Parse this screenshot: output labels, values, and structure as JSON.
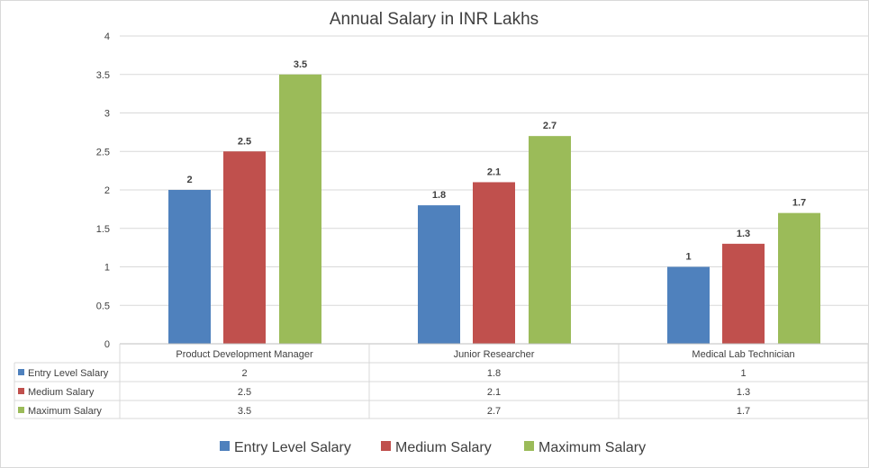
{
  "chart_data": {
    "type": "bar",
    "title": "Annual Salary in INR Lakhs",
    "categories": [
      "Product Development Manager",
      "Junior Researcher",
      "Medical Lab Technician"
    ],
    "series": [
      {
        "name": "Entry Level Salary",
        "color": "#4f81bd",
        "values": [
          2,
          1.8,
          1
        ]
      },
      {
        "name": "Medium Salary",
        "color": "#c0504d",
        "values": [
          2.5,
          2.1,
          1.3
        ]
      },
      {
        "name": "Maximum Salary",
        "color": "#9bbb59",
        "values": [
          3.5,
          2.7,
          1.7
        ]
      }
    ],
    "ylim": [
      0,
      4
    ],
    "yticks": [
      "0",
      "0.5",
      "1",
      "1.5",
      "2",
      "2.5",
      "3",
      "3.5",
      "4"
    ],
    "grid": true,
    "data_table": true,
    "legend": "bottom"
  }
}
